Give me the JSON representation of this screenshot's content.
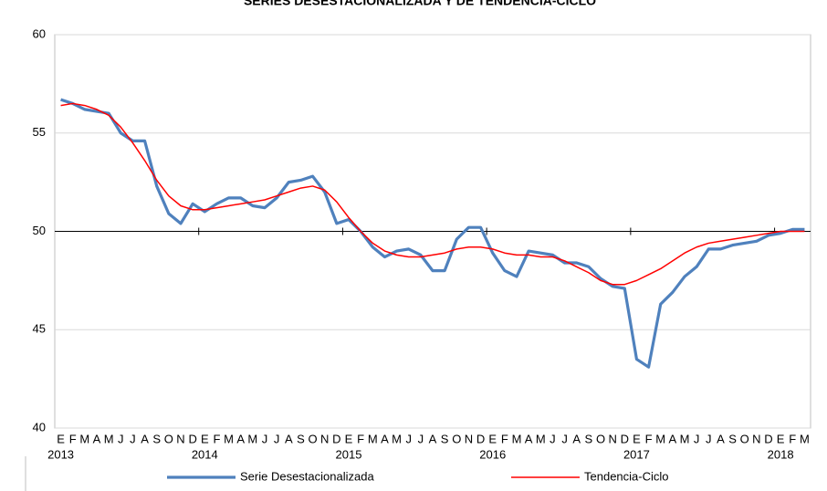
{
  "chart_data": {
    "type": "line",
    "title": "SERIES DESESTACIONALIZADA Y DE TENDENCIA-CICLO",
    "categories": [
      "E",
      "F",
      "M",
      "A",
      "M",
      "J",
      "J",
      "A",
      "S",
      "O",
      "N",
      "D",
      "E",
      "F",
      "M",
      "A",
      "M",
      "J",
      "J",
      "A",
      "S",
      "O",
      "N",
      "D",
      "E",
      "F",
      "M",
      "A",
      "M",
      "J",
      "J",
      "A",
      "S",
      "O",
      "N",
      "D",
      "E",
      "F",
      "M",
      "A",
      "M",
      "J",
      "J",
      "A",
      "S",
      "O",
      "N",
      "D",
      "E",
      "F",
      "M",
      "A",
      "M",
      "J",
      "J",
      "A",
      "S",
      "O",
      "N",
      "D",
      "E",
      "F",
      "M"
    ],
    "years": [
      "2013",
      "2014",
      "2015",
      "2016",
      "2017",
      "2018"
    ],
    "series": [
      {
        "name": "Serie Desestacionalizada",
        "color": "#4f81bd",
        "width": 3.2,
        "values": [
          56.7,
          56.5,
          56.2,
          56.1,
          56.0,
          55.0,
          54.6,
          54.6,
          52.3,
          50.9,
          50.4,
          51.4,
          51.0,
          51.4,
          51.7,
          51.7,
          51.3,
          51.2,
          51.7,
          52.5,
          52.6,
          52.8,
          52.0,
          50.4,
          50.6,
          50.0,
          49.2,
          48.7,
          49.0,
          49.1,
          48.8,
          48.0,
          48.0,
          49.6,
          50.2,
          50.2,
          48.9,
          48.0,
          47.7,
          49.0,
          48.9,
          48.8,
          48.4,
          48.4,
          48.2,
          47.6,
          47.2,
          47.1,
          43.5,
          43.1,
          46.3,
          46.9,
          47.7,
          48.2,
          49.1,
          49.1,
          49.3,
          49.4,
          49.5,
          49.8,
          49.9,
          50.1,
          50.1
        ]
      },
      {
        "name": "Tendencia-Ciclo",
        "color": "#ff0000",
        "width": 1.5,
        "values": [
          56.4,
          56.5,
          56.4,
          56.2,
          55.9,
          55.3,
          54.5,
          53.6,
          52.6,
          51.8,
          51.3,
          51.1,
          51.1,
          51.2,
          51.3,
          51.4,
          51.5,
          51.6,
          51.8,
          52.0,
          52.2,
          52.3,
          52.1,
          51.5,
          50.7,
          50.0,
          49.4,
          49.0,
          48.8,
          48.7,
          48.7,
          48.8,
          48.9,
          49.1,
          49.2,
          49.2,
          49.1,
          48.9,
          48.8,
          48.8,
          48.7,
          48.7,
          48.5,
          48.2,
          47.9,
          47.5,
          47.3,
          47.3,
          47.5,
          47.8,
          48.1,
          48.5,
          48.9,
          49.2,
          49.4,
          49.5,
          49.6,
          49.7,
          49.8,
          49.9,
          50.0,
          50.0,
          50.0
        ]
      }
    ],
    "ylim": [
      40,
      60
    ],
    "yticks": [
      40,
      45,
      50,
      55,
      60
    ],
    "grid": true,
    "axis_crossing": 50,
    "legend": "bottom"
  }
}
